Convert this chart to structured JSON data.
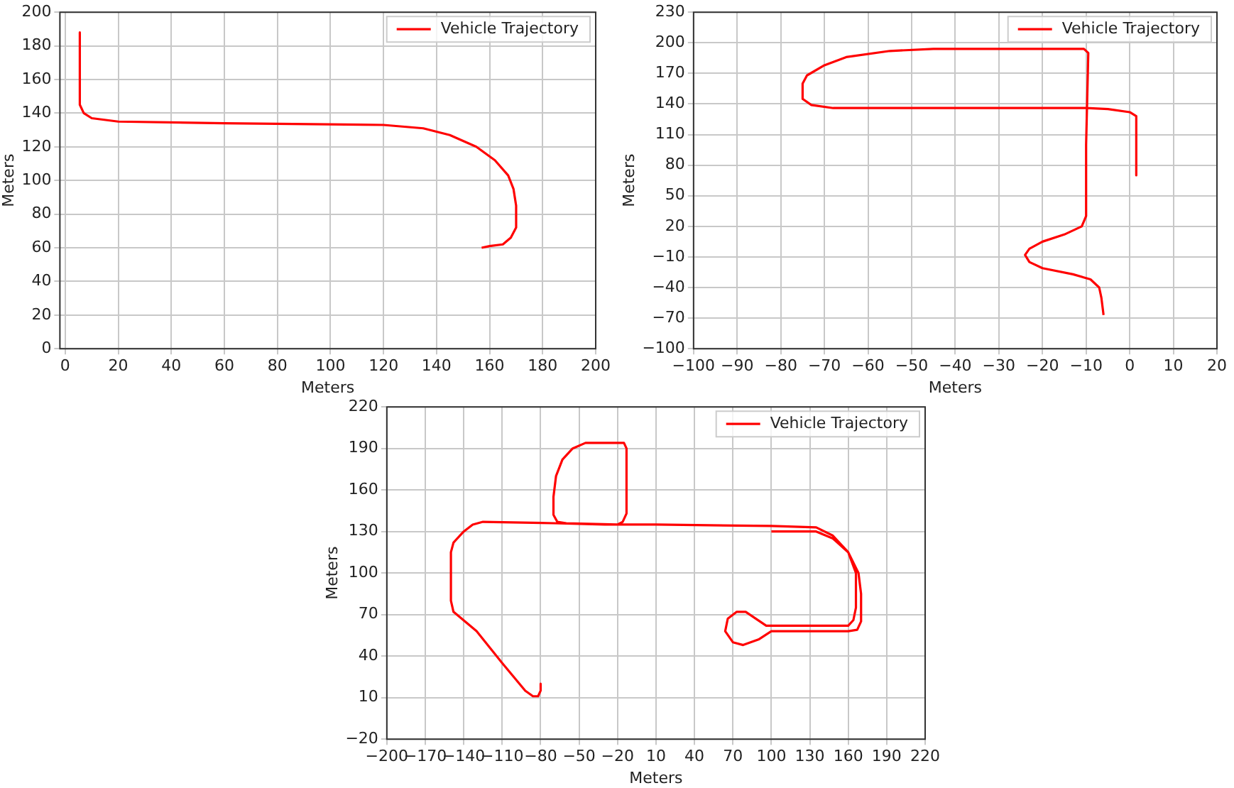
{
  "chart_data": [
    {
      "type": "line",
      "xlabel": "Meters",
      "ylabel": "Meters",
      "legend": "top right",
      "grid": true,
      "marker": "none",
      "line_style": "solid",
      "xlim": [
        -2,
        200
      ],
      "ylim": [
        0,
        200
      ],
      "xticks": [
        0,
        20,
        40,
        60,
        80,
        100,
        120,
        140,
        160,
        180,
        200
      ],
      "yticks": [
        0,
        20,
        40,
        60,
        80,
        100,
        120,
        140,
        160,
        180,
        200
      ],
      "series": [
        {
          "name": "Vehicle Trajectory",
          "color": "#ff0000",
          "x": [
            5.5,
            5.5,
            7,
            10,
            20,
            60,
            120,
            135,
            145,
            155,
            162,
            167,
            169,
            170,
            170,
            168,
            165,
            160,
            157
          ],
          "values": [
            188,
            145,
            140,
            137,
            135,
            134,
            133,
            131,
            127,
            120,
            112,
            103,
            95,
            85,
            72,
            66,
            62,
            61,
            60
          ]
        }
      ]
    },
    {
      "type": "line",
      "xlabel": "Meters",
      "ylabel": "Meters",
      "legend": "top right",
      "grid": true,
      "marker": "none",
      "line_style": "solid",
      "xlim": [
        -100,
        20
      ],
      "ylim": [
        -100,
        230
      ],
      "xticks": [
        -100,
        -90,
        -80,
        -70,
        -60,
        -50,
        -40,
        -30,
        -20,
        -10,
        0,
        10,
        20
      ],
      "yticks": [
        -100,
        -70,
        -40,
        -10,
        20,
        50,
        80,
        110,
        140,
        170,
        200,
        230
      ],
      "series": [
        {
          "name": "Vehicle Trajectory",
          "color": "#ff0000",
          "x": [
            -6,
            -6.5,
            -7,
            -9,
            -13,
            -20,
            -23,
            -24,
            -23,
            -20,
            -15,
            -11,
            -10,
            -10,
            -9.5,
            -10.5,
            -20,
            -45,
            -55,
            -65,
            -70,
            -74,
            -75,
            -75,
            -73,
            -68,
            -50,
            -20,
            -10,
            -5,
            0,
            1.5,
            1.5
          ],
          "values": [
            -67,
            -50,
            -40,
            -32,
            -27,
            -21,
            -15,
            -8,
            -2,
            5,
            12,
            20,
            30,
            100,
            190,
            194,
            194,
            194,
            192,
            186,
            178,
            168,
            160,
            145,
            139,
            136,
            136,
            136,
            136,
            135,
            132,
            128,
            70
          ]
        }
      ]
    },
    {
      "type": "line",
      "xlabel": "Meters",
      "ylabel": "Meters",
      "legend": "top right",
      "grid": true,
      "marker": "none",
      "line_style": "solid",
      "xlim": [
        -200,
        220
      ],
      "ylim": [
        -20,
        220
      ],
      "xticks": [
        -200,
        -170,
        -140,
        -110,
        -80,
        -50,
        -20,
        10,
        40,
        70,
        100,
        130,
        160,
        190,
        220
      ],
      "yticks": [
        -20,
        10,
        40,
        70,
        100,
        130,
        160,
        190,
        220
      ],
      "series": [
        {
          "name": "Vehicle Trajectory",
          "color": "#ff0000",
          "x": [
            -80,
            -80,
            -82,
            -86,
            -92,
            -110,
            -130,
            -148,
            -150,
            -150,
            -148,
            -140,
            -133,
            -125,
            -70,
            -30,
            -20,
            -16,
            -13,
            -13,
            -15,
            -20,
            -45,
            -55,
            -63,
            -68,
            -70,
            -70,
            -67,
            -60,
            -20,
            10,
            100,
            135,
            148,
            160,
            168,
            170,
            170,
            167,
            160,
            100,
            90,
            78,
            70,
            64,
            66,
            73,
            80,
            88,
            96,
            160,
            164,
            166,
            166,
            160,
            148,
            135,
            100
          ],
          "values": [
            20,
            15,
            11,
            11,
            15,
            35,
            58,
            72,
            80,
            115,
            122,
            130,
            135,
            137,
            136,
            135,
            135,
            137,
            143,
            190,
            194,
            194,
            194,
            190,
            182,
            170,
            155,
            142,
            137,
            136,
            135,
            135,
            134,
            133,
            127,
            115,
            100,
            85,
            65,
            59,
            58,
            58,
            52,
            48,
            50,
            58,
            67,
            72,
            72,
            67,
            62,
            62,
            66,
            75,
            100,
            115,
            125,
            130,
            130
          ]
        }
      ]
    }
  ]
}
